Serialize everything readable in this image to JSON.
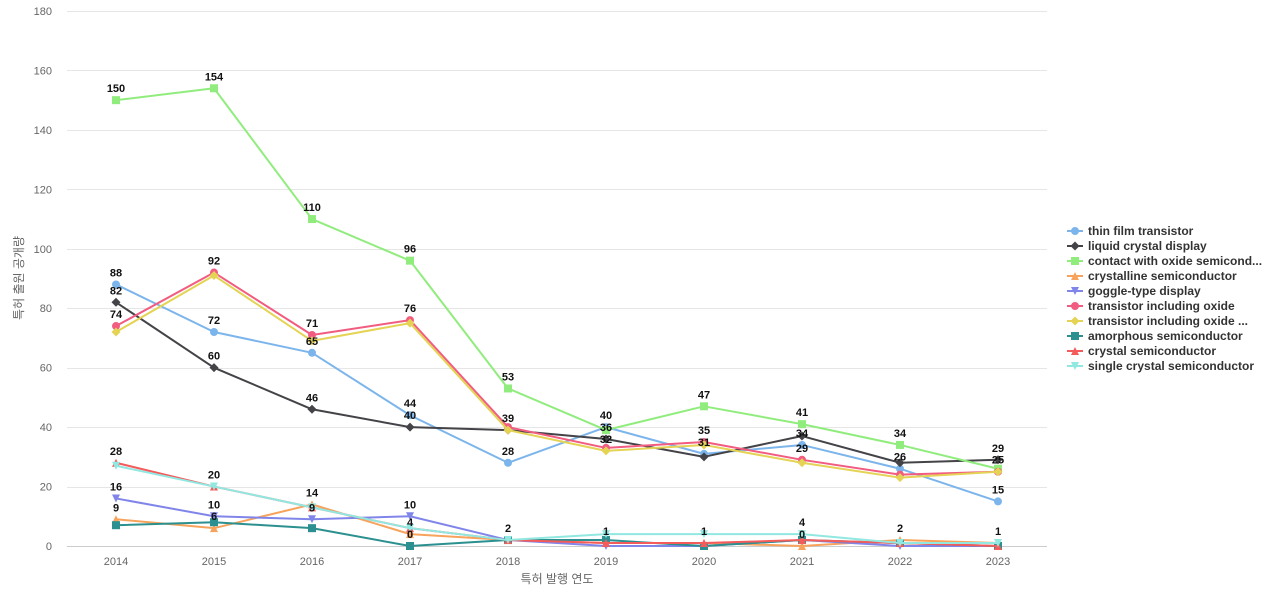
{
  "chart_data": {
    "type": "line",
    "title": "",
    "xlabel": "특허 발행 연도",
    "ylabel": "특허 출원 공개량",
    "ylim": [
      0,
      180
    ],
    "yticks": [
      0,
      20,
      40,
      60,
      80,
      100,
      120,
      140,
      160,
      180
    ],
    "grid": true,
    "legend_position": "right",
    "x": [
      "2014",
      "2015",
      "2016",
      "2017",
      "2018",
      "2019",
      "2020",
      "2021",
      "2022",
      "2023"
    ],
    "series": [
      {
        "name": "thin film transistor",
        "color": "#7cb5ec",
        "marker": "circle",
        "values": [
          88,
          72,
          65,
          44,
          28,
          40,
          31,
          34,
          26,
          15
        ]
      },
      {
        "name": "liquid crystal display",
        "color": "#434348",
        "marker": "diamond",
        "values": [
          82,
          60,
          46,
          40,
          39,
          36,
          30,
          37,
          28,
          29
        ]
      },
      {
        "name": "contact with oxide semicond...",
        "color": "#90ed7d",
        "marker": "square",
        "values": [
          150,
          154,
          110,
          96,
          53,
          39,
          47,
          41,
          34,
          26
        ]
      },
      {
        "name": "crystalline semiconductor",
        "color": "#f7a35c",
        "marker": "triangle",
        "values": [
          9,
          6,
          14,
          4,
          2,
          1,
          1,
          0,
          2,
          1
        ]
      },
      {
        "name": "goggle-type display",
        "color": "#8085e9",
        "marker": "triangle-down",
        "values": [
          16,
          10,
          9,
          10,
          2,
          0,
          0,
          2,
          0,
          0
        ]
      },
      {
        "name": "transistor including oxide",
        "color": "#f15c80",
        "marker": "circle",
        "values": [
          74,
          92,
          71,
          76,
          40,
          33,
          35,
          29,
          24,
          25
        ]
      },
      {
        "name": "transistor including oxide ...",
        "color": "#e4d354",
        "marker": "diamond",
        "values": [
          72,
          91,
          69,
          75,
          39,
          32,
          34,
          28,
          23,
          25
        ]
      },
      {
        "name": "amorphous semiconductor",
        "color": "#2b908f",
        "marker": "square",
        "values": [
          7,
          8,
          6,
          0,
          2,
          2,
          0,
          2,
          1,
          0
        ]
      },
      {
        "name": "crystal semiconductor",
        "color": "#f45b5b",
        "marker": "triangle",
        "values": [
          28,
          20,
          13,
          6,
          2,
          1,
          1,
          2,
          1,
          0
        ]
      },
      {
        "name": "single crystal semiconductor",
        "color": "#91e8e1",
        "marker": "triangle-down",
        "values": [
          27,
          20,
          13,
          6,
          2,
          4,
          4,
          4,
          1,
          1
        ]
      }
    ],
    "data_labels": [
      {
        "text": "150",
        "x": "2014",
        "y": 150
      },
      {
        "text": "88",
        "x": "2014",
        "y": 88
      },
      {
        "text": "82",
        "x": "2014",
        "y": 82
      },
      {
        "text": "74",
        "x": "2014",
        "y": 74
      },
      {
        "text": "28",
        "x": "2014",
        "y": 28
      },
      {
        "text": "16",
        "x": "2014",
        "y": 16
      },
      {
        "text": "9",
        "x": "2014",
        "y": 9
      },
      {
        "text": "154",
        "x": "2015",
        "y": 154
      },
      {
        "text": "92",
        "x": "2015",
        "y": 92
      },
      {
        "text": "72",
        "x": "2015",
        "y": 72
      },
      {
        "text": "60",
        "x": "2015",
        "y": 60
      },
      {
        "text": "20",
        "x": "2015",
        "y": 20
      },
      {
        "text": "10",
        "x": "2015",
        "y": 10
      },
      {
        "text": "6",
        "x": "2015",
        "y": 6
      },
      {
        "text": "110",
        "x": "2016",
        "y": 110
      },
      {
        "text": "71",
        "x": "2016",
        "y": 71
      },
      {
        "text": "65",
        "x": "2016",
        "y": 65
      },
      {
        "text": "46",
        "x": "2016",
        "y": 46
      },
      {
        "text": "14",
        "x": "2016",
        "y": 14
      },
      {
        "text": "9",
        "x": "2016",
        "y": 9
      },
      {
        "text": "96",
        "x": "2017",
        "y": 96
      },
      {
        "text": "76",
        "x": "2017",
        "y": 76
      },
      {
        "text": "44",
        "x": "2017",
        "y": 44
      },
      {
        "text": "40",
        "x": "2017",
        "y": 40
      },
      {
        "text": "10",
        "x": "2017",
        "y": 10
      },
      {
        "text": "4",
        "x": "2017",
        "y": 4
      },
      {
        "text": "0",
        "x": "2017",
        "y": 0
      },
      {
        "text": "53",
        "x": "2018",
        "y": 53
      },
      {
        "text": "39",
        "x": "2018",
        "y": 39
      },
      {
        "text": "28",
        "x": "2018",
        "y": 28
      },
      {
        "text": "2",
        "x": "2018",
        "y": 2
      },
      {
        "text": "40",
        "x": "2019",
        "y": 40
      },
      {
        "text": "36",
        "x": "2019",
        "y": 36
      },
      {
        "text": "32",
        "x": "2019",
        "y": 32
      },
      {
        "text": "1",
        "x": "2019",
        "y": 1
      },
      {
        "text": "47",
        "x": "2020",
        "y": 47
      },
      {
        "text": "35",
        "x": "2020",
        "y": 35
      },
      {
        "text": "31",
        "x": "2020",
        "y": 31
      },
      {
        "text": "1",
        "x": "2020",
        "y": 1
      },
      {
        "text": "41",
        "x": "2021",
        "y": 41
      },
      {
        "text": "34",
        "x": "2021",
        "y": 34
      },
      {
        "text": "29",
        "x": "2021",
        "y": 29
      },
      {
        "text": "4",
        "x": "2021",
        "y": 4
      },
      {
        "text": "0",
        "x": "2021",
        "y": 0
      },
      {
        "text": "34",
        "x": "2022",
        "y": 34
      },
      {
        "text": "26",
        "x": "2022",
        "y": 26
      },
      {
        "text": "2",
        "x": "2022",
        "y": 2
      },
      {
        "text": "29",
        "x": "2023",
        "y": 29
      },
      {
        "text": "25",
        "x": "2023",
        "y": 25
      },
      {
        "text": "15",
        "x": "2023",
        "y": 15
      },
      {
        "text": "1",
        "x": "2023",
        "y": 1
      }
    ]
  }
}
